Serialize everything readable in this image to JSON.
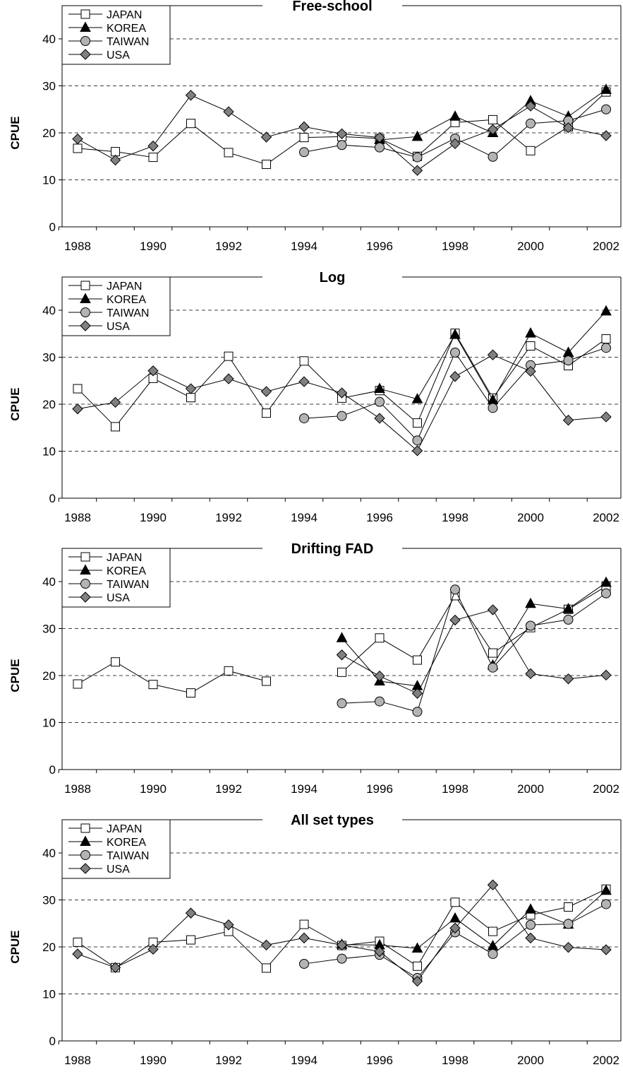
{
  "chart_data": [
    {
      "type": "line",
      "title": "Free-school",
      "xlabel": "",
      "ylabel": "CPUE",
      "xlim": [
        1988,
        2002
      ],
      "ylim": [
        0,
        40
      ],
      "x_ticks": [
        1988,
        1990,
        1992,
        1994,
        1996,
        1998,
        2000,
        2002
      ],
      "y_ticks": [
        0,
        10,
        20,
        30,
        40
      ],
      "legend": "top-left",
      "gridlines": "horizontal dashed",
      "x": [
        1988,
        1989,
        1990,
        1991,
        1992,
        1993,
        1994,
        1995,
        1996,
        1997,
        1998,
        1999,
        2000,
        2001,
        2002
      ],
      "series": [
        {
          "name": "JAPAN",
          "marker": "square-open",
          "values": [
            16.7,
            16.0,
            14.8,
            22.0,
            15.8,
            13.3,
            19.0,
            19.2,
            18.8,
            15.0,
            22.2,
            22.8,
            16.2,
            21.3,
            28.7
          ]
        },
        {
          "name": "KOREA",
          "marker": "triangle-black",
          "values": [
            null,
            null,
            null,
            null,
            null,
            null,
            null,
            null,
            18.5,
            19.2,
            23.5,
            20.0,
            26.8,
            23.5,
            29.2
          ]
        },
        {
          "name": "TAIWAN",
          "marker": "circle-gray",
          "values": [
            null,
            null,
            null,
            null,
            null,
            null,
            15.9,
            17.4,
            16.9,
            14.8,
            18.8,
            14.9,
            22.0,
            22.6,
            25.0
          ]
        },
        {
          "name": "USA",
          "marker": "diamond-gray",
          "values": [
            18.7,
            14.2,
            17.2,
            28.0,
            24.5,
            19.1,
            21.3,
            19.8,
            19.0,
            12.0,
            17.7,
            20.7,
            25.7,
            21.1,
            19.4
          ]
        }
      ]
    },
    {
      "type": "line",
      "title": "Log",
      "xlabel": "",
      "ylabel": "CPUE",
      "xlim": [
        1988,
        2002
      ],
      "ylim": [
        0,
        40
      ],
      "x_ticks": [
        1988,
        1990,
        1992,
        1994,
        1996,
        1998,
        2000,
        2002
      ],
      "y_ticks": [
        0,
        10,
        20,
        30,
        40
      ],
      "legend": "top-left",
      "gridlines": "horizontal dashed",
      "x": [
        1988,
        1989,
        1990,
        1991,
        1992,
        1993,
        1994,
        1995,
        1996,
        1997,
        1998,
        1999,
        2000,
        2001,
        2002
      ],
      "series": [
        {
          "name": "JAPAN",
          "marker": "square-open",
          "values": [
            23.3,
            15.2,
            25.5,
            21.4,
            30.2,
            18.1,
            29.2,
            21.3,
            22.9,
            16.0,
            35.1,
            21.3,
            32.4,
            28.2,
            33.9
          ]
        },
        {
          "name": "KOREA",
          "marker": "triangle-black",
          "values": [
            null,
            null,
            null,
            null,
            null,
            null,
            null,
            null,
            23.3,
            21.1,
            34.8,
            20.9,
            35.1,
            31.0,
            39.8
          ]
        },
        {
          "name": "TAIWAN",
          "marker": "circle-gray",
          "values": [
            null,
            null,
            null,
            null,
            null,
            null,
            17.0,
            17.5,
            20.5,
            12.3,
            31.0,
            19.2,
            28.3,
            29.3,
            32.0
          ]
        },
        {
          "name": "USA",
          "marker": "diamond-gray",
          "values": [
            19.0,
            20.4,
            27.1,
            23.3,
            25.4,
            22.7,
            24.8,
            22.4,
            17.0,
            10.1,
            25.9,
            30.5,
            27.0,
            16.6,
            17.3
          ]
        }
      ]
    },
    {
      "type": "line",
      "title": "Drifting FAD",
      "xlabel": "",
      "ylabel": "CPUE",
      "xlim": [
        1988,
        2002
      ],
      "ylim": [
        0,
        40
      ],
      "x_ticks": [
        1988,
        1990,
        1992,
        1994,
        1996,
        1998,
        2000,
        2002
      ],
      "y_ticks": [
        0,
        10,
        20,
        30,
        40
      ],
      "legend": "top-left",
      "gridlines": "horizontal dashed",
      "x": [
        1988,
        1989,
        1990,
        1991,
        1992,
        1993,
        1994,
        1995,
        1996,
        1997,
        1998,
        1999,
        2000,
        2001,
        2002
      ],
      "series": [
        {
          "name": "JAPAN",
          "marker": "square-open",
          "values": [
            18.2,
            22.9,
            18.1,
            16.3,
            21.0,
            18.8,
            null,
            20.7,
            28.0,
            23.3,
            37.0,
            24.8,
            30.2,
            34.1,
            39.0
          ]
        },
        {
          "name": "KOREA",
          "marker": "triangle-black",
          "values": [
            null,
            null,
            null,
            null,
            null,
            null,
            null,
            28.0,
            18.8,
            17.8,
            null,
            22.2,
            35.3,
            34.2,
            39.8
          ]
        },
        {
          "name": "TAIWAN",
          "marker": "circle-gray",
          "values": [
            null,
            null,
            null,
            null,
            null,
            null,
            null,
            14.1,
            14.5,
            12.3,
            38.3,
            21.7,
            30.6,
            31.9,
            37.5
          ]
        },
        {
          "name": "USA",
          "marker": "diamond-gray",
          "values": [
            null,
            null,
            null,
            null,
            null,
            null,
            null,
            24.4,
            19.9,
            16.2,
            31.8,
            34.0,
            20.4,
            19.3,
            20.1
          ]
        }
      ]
    },
    {
      "type": "line",
      "title": "All set types",
      "xlabel": "",
      "ylabel": "CPUE",
      "xlim": [
        1988,
        2002
      ],
      "ylim": [
        0,
        40
      ],
      "x_ticks": [
        1988,
        1990,
        1992,
        1994,
        1996,
        1998,
        2000,
        2002
      ],
      "y_ticks": [
        0,
        10,
        20,
        30,
        40
      ],
      "legend": "top-left",
      "gridlines": "horizontal dashed",
      "x": [
        1988,
        1989,
        1990,
        1991,
        1992,
        1993,
        1994,
        1995,
        1996,
        1997,
        1998,
        1999,
        2000,
        2001,
        2002
      ],
      "series": [
        {
          "name": "JAPAN",
          "marker": "square-open",
          "values": [
            21.0,
            15.6,
            21.0,
            21.5,
            23.3,
            15.5,
            24.8,
            20.3,
            21.2,
            15.9,
            29.5,
            23.3,
            26.8,
            28.5,
            32.3
          ]
        },
        {
          "name": "KOREA",
          "marker": "triangle-black",
          "values": [
            null,
            null,
            null,
            null,
            null,
            null,
            null,
            20.5,
            20.4,
            19.7,
            26.1,
            20.2,
            28.0,
            24.8,
            32.0
          ]
        },
        {
          "name": "TAIWAN",
          "marker": "circle-gray",
          "values": [
            null,
            null,
            null,
            null,
            null,
            null,
            16.4,
            17.5,
            18.3,
            13.4,
            23.1,
            18.5,
            24.7,
            24.9,
            29.1
          ]
        },
        {
          "name": "USA",
          "marker": "diamond-gray",
          "values": [
            18.5,
            15.6,
            19.5,
            27.2,
            24.7,
            20.4,
            21.9,
            20.4,
            19.0,
            12.7,
            24.0,
            33.2,
            21.9,
            19.9,
            19.4
          ]
        }
      ]
    }
  ]
}
